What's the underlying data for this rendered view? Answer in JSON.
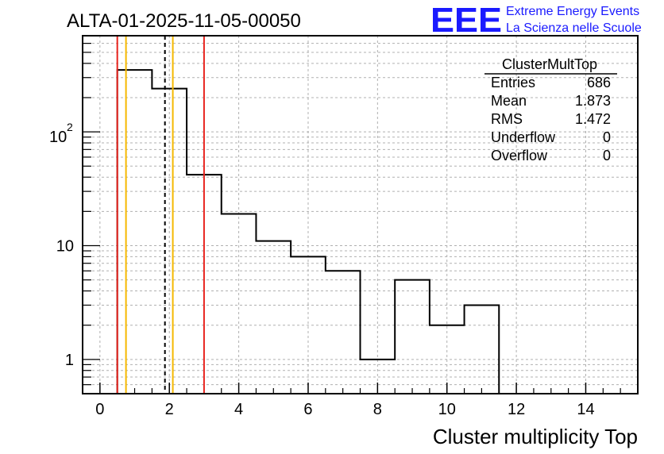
{
  "chart_data": {
    "type": "bar",
    "title": "ALTA-01-2025-11-05-00050",
    "xlabel": "Cluster multiplicity Top",
    "ylabel": "",
    "y_scale": "log",
    "xlim": [
      -0.5,
      15.5
    ],
    "ylim": [
      0.5,
      700
    ],
    "x_ticks": [
      {
        "value": 0,
        "label": "0"
      },
      {
        "value": 2,
        "label": "2"
      },
      {
        "value": 4,
        "label": "4"
      },
      {
        "value": 6,
        "label": "6"
      },
      {
        "value": 8,
        "label": "8"
      },
      {
        "value": 10,
        "label": "10"
      },
      {
        "value": 12,
        "label": "12"
      },
      {
        "value": 14,
        "label": "14"
      }
    ],
    "y_ticks": [
      {
        "value": 1,
        "label": "1"
      },
      {
        "value": 10,
        "label": "10"
      },
      {
        "value": 100,
        "label": "10",
        "sup": "2"
      }
    ],
    "bins": [
      {
        "lo": 0.5,
        "hi": 1.5,
        "value": 350
      },
      {
        "lo": 1.5,
        "hi": 2.5,
        "value": 240
      },
      {
        "lo": 2.5,
        "hi": 3.5,
        "value": 42
      },
      {
        "lo": 3.5,
        "hi": 4.5,
        "value": 19
      },
      {
        "lo": 4.5,
        "hi": 5.5,
        "value": 11
      },
      {
        "lo": 5.5,
        "hi": 6.5,
        "value": 8
      },
      {
        "lo": 6.5,
        "hi": 7.5,
        "value": 6
      },
      {
        "lo": 7.5,
        "hi": 8.5,
        "value": 1
      },
      {
        "lo": 8.5,
        "hi": 9.5,
        "value": 5
      },
      {
        "lo": 9.5,
        "hi": 10.5,
        "value": 2
      },
      {
        "lo": 10.5,
        "hi": 11.5,
        "value": 3
      }
    ],
    "vlines": [
      {
        "x": 0.5,
        "color": "#e8231e",
        "style": "solid"
      },
      {
        "x": 0.75,
        "color": "#f5b800",
        "style": "solid"
      },
      {
        "x": 1.873,
        "color": "#000000",
        "style": "dashed"
      },
      {
        "x": 2.1,
        "color": "#f5b800",
        "style": "solid"
      },
      {
        "x": 3.0,
        "color": "#e8231e",
        "style": "solid"
      }
    ],
    "grid": true,
    "stats_box": {
      "title": "ClusterMultTop",
      "rows": [
        {
          "label": "Entries",
          "value": "686"
        },
        {
          "label": "Mean",
          "value": "1.873"
        },
        {
          "label": "RMS",
          "value": "1.472"
        },
        {
          "label": "Underflow",
          "value": "0"
        },
        {
          "label": "Overflow",
          "value": "0"
        }
      ]
    }
  },
  "logo": {
    "mark": "EEE",
    "line1": "Extreme Energy Events",
    "line2": "La Scienza nelle Scuole",
    "color": "#1a1aff"
  }
}
